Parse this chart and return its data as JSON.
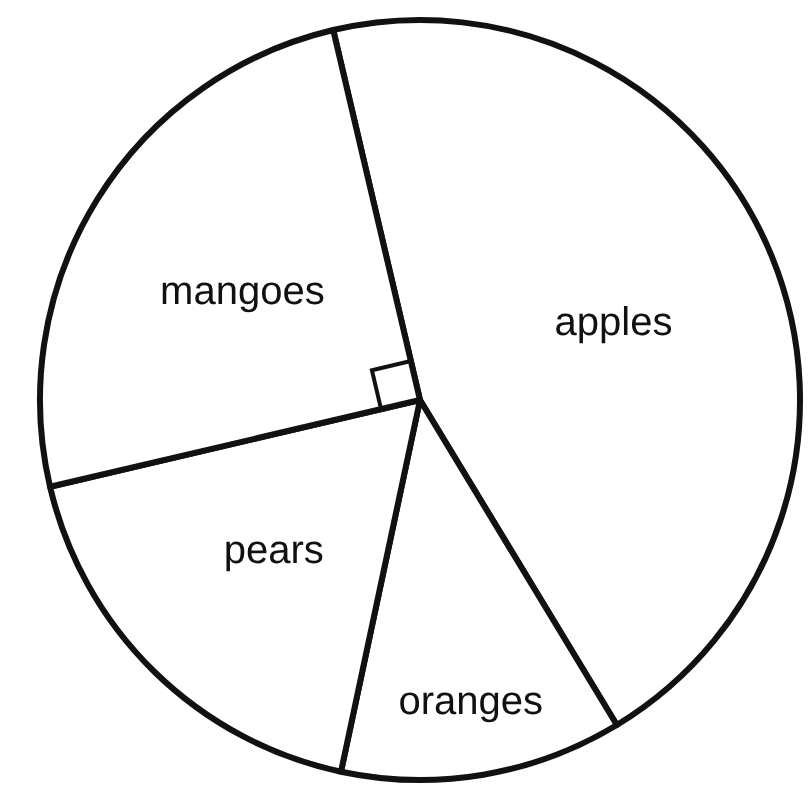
{
  "chart_data": {
    "type": "pie",
    "categories": [
      "apples",
      "oranges",
      "pears",
      "mangoes"
    ],
    "values": [
      45,
      12,
      18,
      25
    ],
    "colors": [
      "#ffffff",
      "#ffffff",
      "#ffffff",
      "#ffffff"
    ]
  }
}
